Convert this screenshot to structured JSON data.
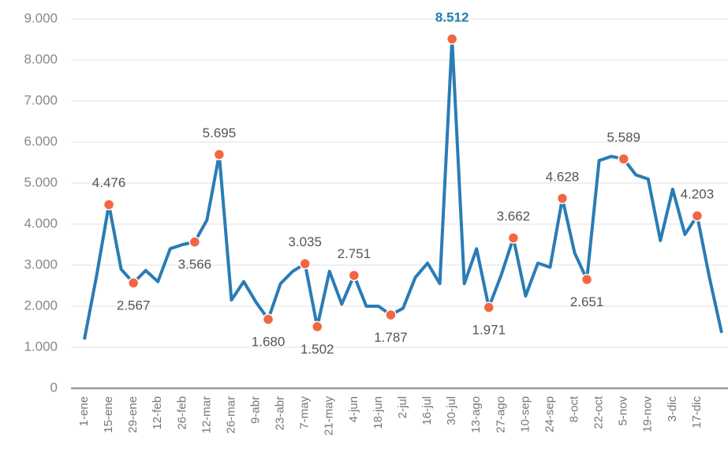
{
  "chart_data": {
    "type": "line",
    "categories": [
      "1-ene",
      null,
      "15-ene",
      null,
      "29-ene",
      null,
      "12-feb",
      null,
      "26-feb",
      null,
      "12-mar",
      null,
      "26-mar",
      null,
      "9-abr",
      null,
      "23-abr",
      null,
      "7-may",
      null,
      "21-may",
      null,
      "4-jun",
      null,
      "18-jun",
      null,
      "2-jul",
      null,
      "16-jul",
      null,
      "30-jul",
      null,
      "13-ago",
      null,
      "27-ago",
      null,
      "10-sep",
      null,
      "24-sep",
      null,
      "8-oct",
      null,
      "22-oct",
      null,
      "5-nov",
      null,
      "19-nov",
      null,
      "3-dic",
      null,
      "17-dic",
      null,
      null
    ],
    "series": [
      {
        "color": "#2a7cb5",
        "marker_color": "#f26641",
        "values": [
          1190,
          2750,
          4476,
          2900,
          2567,
          2870,
          2600,
          3400,
          3500,
          3566,
          4100,
          5695,
          2150,
          2600,
          2100,
          1680,
          2550,
          2850,
          3035,
          1502,
          2850,
          2050,
          2751,
          2000,
          2000,
          1787,
          1950,
          2700,
          3050,
          2550,
          8512,
          2550,
          3400,
          1971,
          2750,
          3662,
          2250,
          3050,
          2950,
          4628,
          3300,
          2651,
          5550,
          5650,
          5589,
          5200,
          5100,
          3600,
          4850,
          3750,
          4203,
          2700,
          1350
        ],
        "value_labels": [
          null,
          null,
          "4.476",
          null,
          "2.567",
          null,
          null,
          null,
          null,
          "3.566",
          null,
          "5.695",
          null,
          null,
          null,
          "1.680",
          null,
          null,
          "3.035",
          "1.502",
          null,
          null,
          "2.751",
          null,
          null,
          "1.787",
          null,
          null,
          null,
          null,
          "8.512",
          null,
          null,
          "1.971",
          null,
          "3.662",
          null,
          null,
          null,
          "4.628",
          null,
          "2.651",
          null,
          null,
          "5.589",
          null,
          null,
          null,
          null,
          null,
          "4.203",
          null,
          null
        ]
      }
    ],
    "ylim": [
      0,
      9000
    ],
    "yticks": [
      0,
      {
        "value": 1000,
        "label": "1.000"
      },
      {
        "value": 2000,
        "label": "2.000"
      },
      {
        "value": 3000,
        "label": "3.000"
      },
      {
        "value": 4000,
        "label": "4.000"
      },
      {
        "value": 5000,
        "label": "5.000"
      },
      {
        "value": 6000,
        "label": "6.000"
      },
      {
        "value": 7000,
        "label": "7.000"
      },
      {
        "value": 8000,
        "label": "8.000"
      },
      {
        "value": 9000,
        "label": "9.000"
      }
    ],
    "grid": true,
    "max_color": "#1f7bb6",
    "min_color": "#f26641"
  }
}
